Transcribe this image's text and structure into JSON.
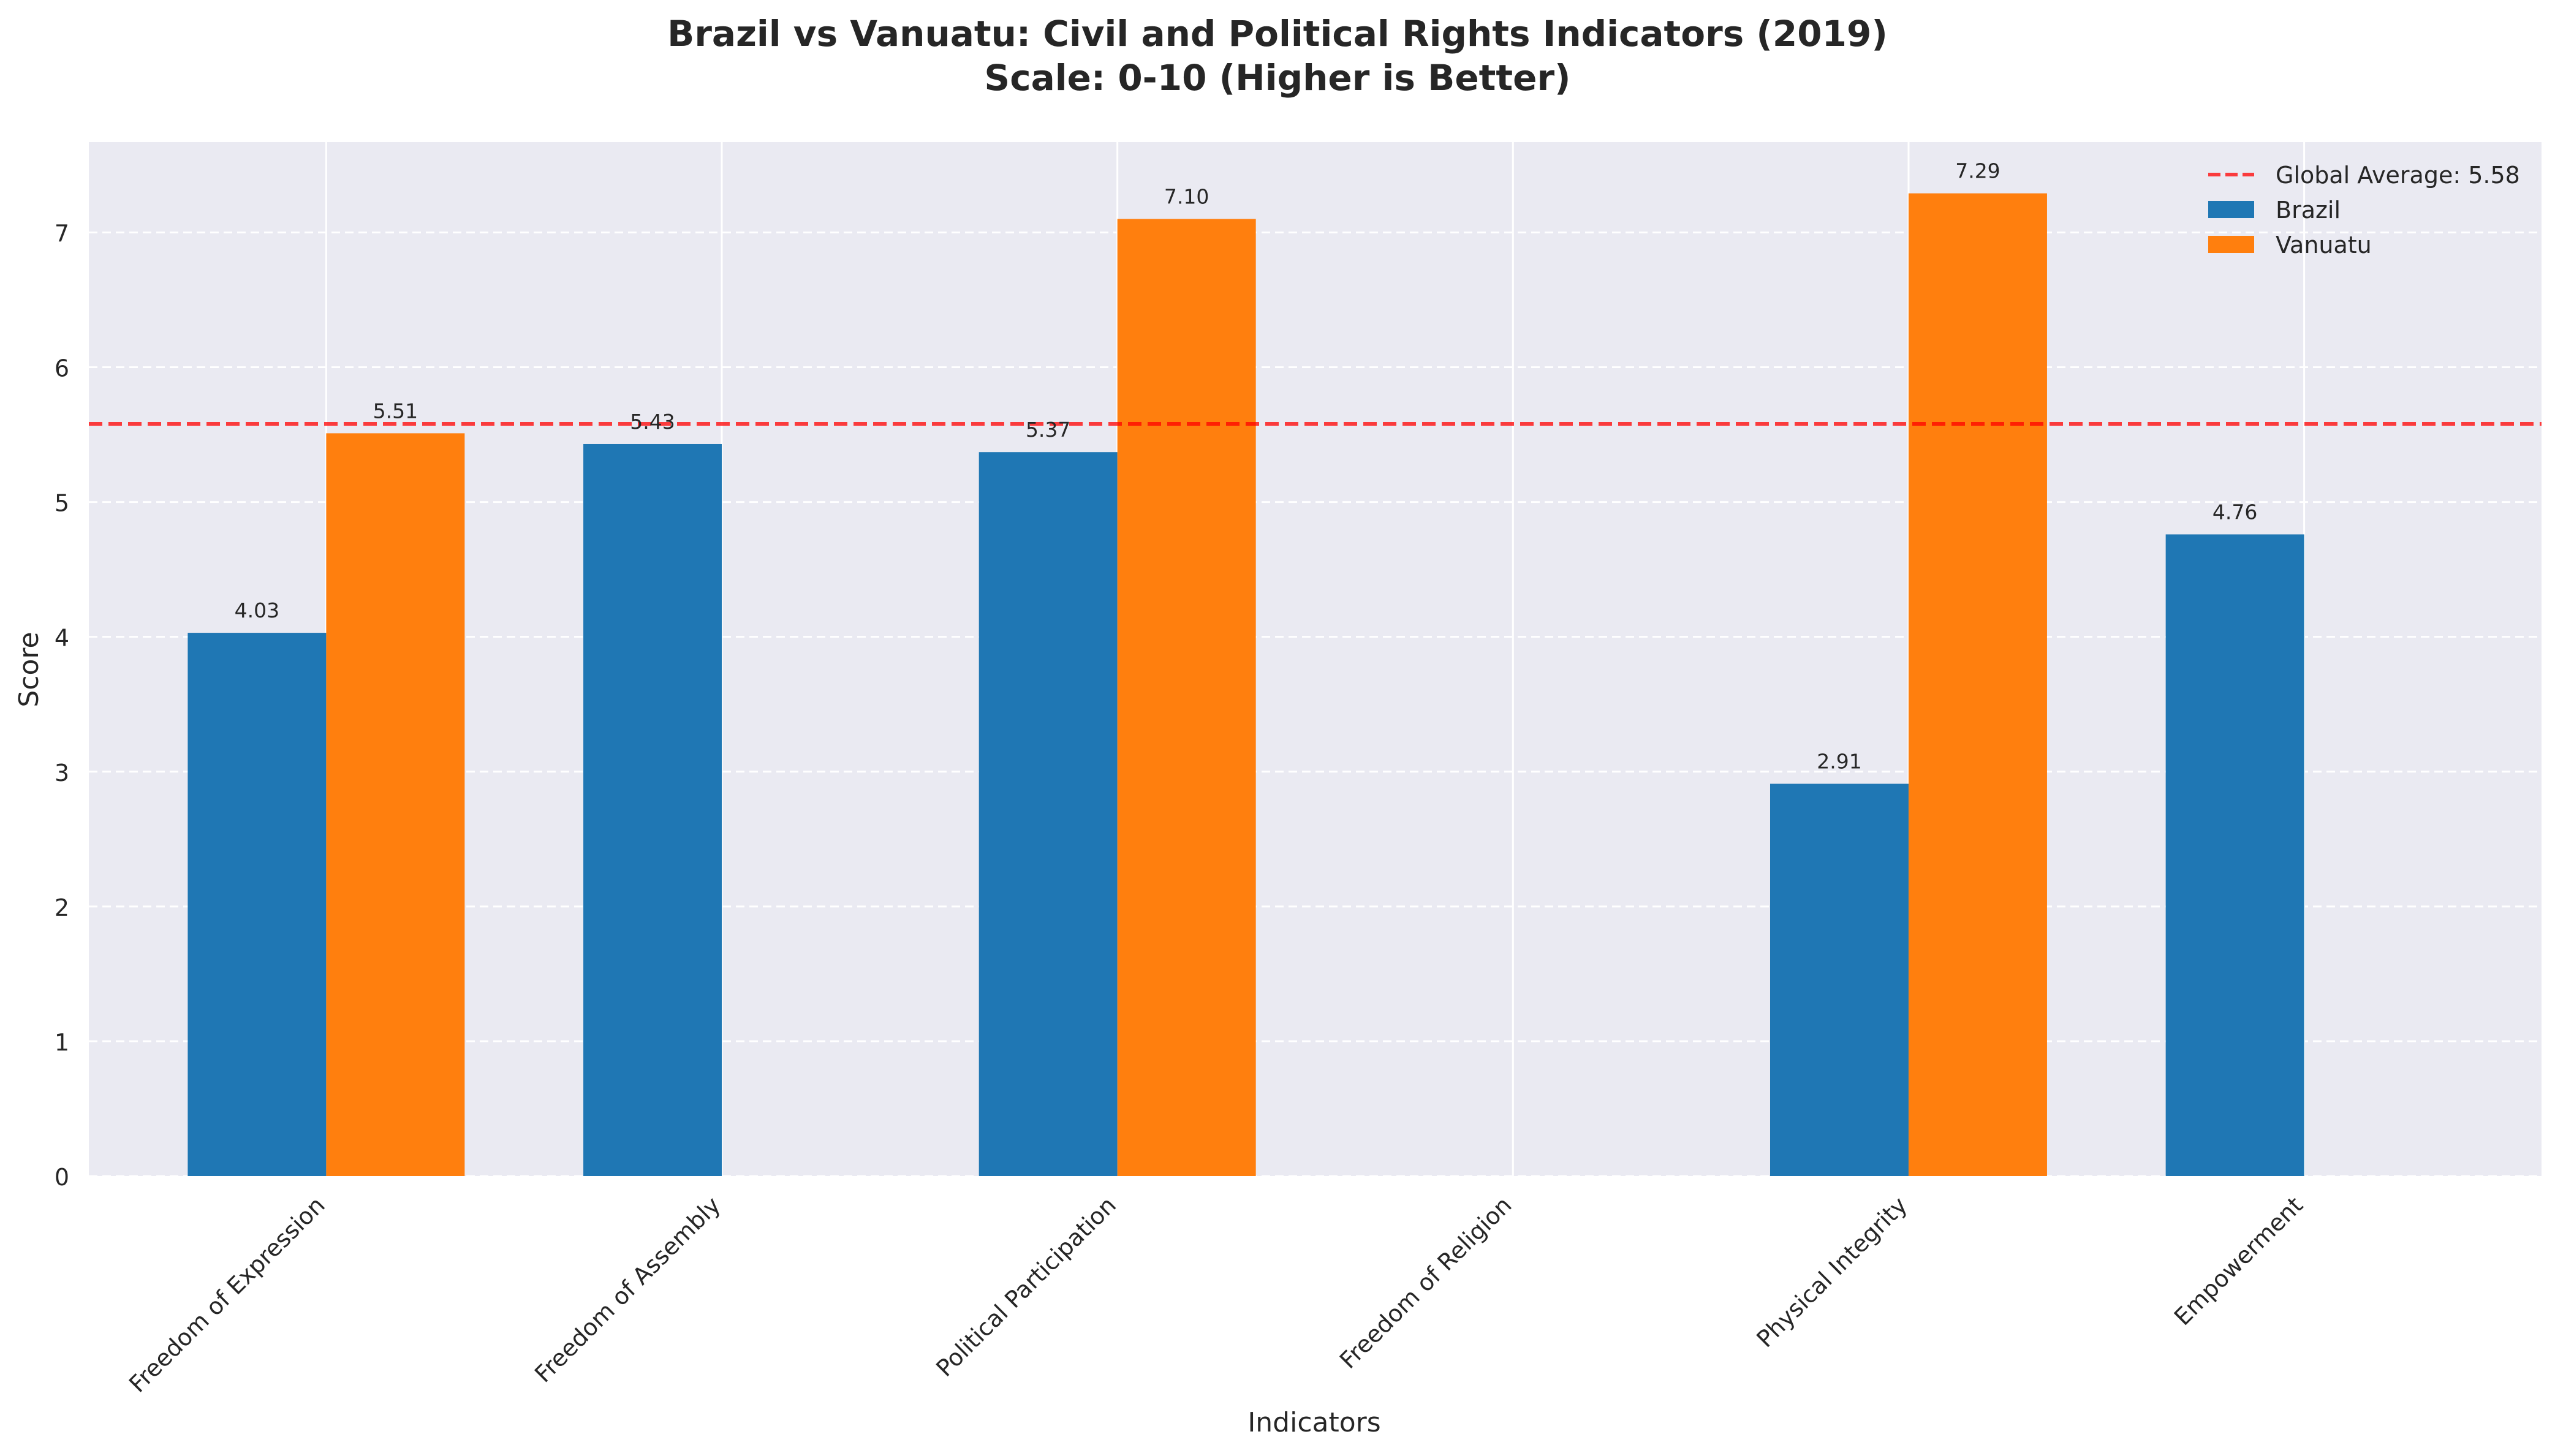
{
  "chart_data": {
    "type": "bar",
    "title_lines": [
      "Brazil vs Vanuatu: Civil and Political Rights Indicators (2019)",
      "Scale: 0-10 (Higher is Better)"
    ],
    "xlabel": "Indicators",
    "ylabel": "Score",
    "categories": [
      "Freedom of Expression",
      "Freedom of Assembly",
      "Political Participation",
      "Freedom of Religion",
      "Physical Integrity",
      "Empowerment"
    ],
    "series": [
      {
        "name": "Brazil",
        "color": "#1f77b4",
        "values": [
          4.03,
          5.43,
          5.37,
          null,
          2.91,
          4.76
        ],
        "labels": [
          "4.03",
          "5.43",
          "5.37",
          "",
          "2.91",
          "4.76"
        ]
      },
      {
        "name": "Vanuatu",
        "color": "#ff7f0e",
        "values": [
          5.51,
          null,
          7.1,
          null,
          7.29,
          null
        ],
        "labels": [
          "5.51",
          "",
          "7.10",
          "",
          "7.29",
          ""
        ]
      }
    ],
    "reference_line": {
      "value": 5.58,
      "label": "Global Average: 5.58",
      "color": "#ff0000",
      "style": "dashed"
    },
    "ylim": [
      0,
      7.67
    ],
    "yticks": [
      0,
      1,
      2,
      3,
      4,
      5,
      6,
      7
    ],
    "ytick_labels": [
      "0",
      "1",
      "2",
      "3",
      "4",
      "5",
      "6",
      "7"
    ],
    "grid": true,
    "legend_placement": "top-right",
    "colors": {
      "plot_background": "#eaeaf2",
      "grid": "#ffffff"
    }
  }
}
